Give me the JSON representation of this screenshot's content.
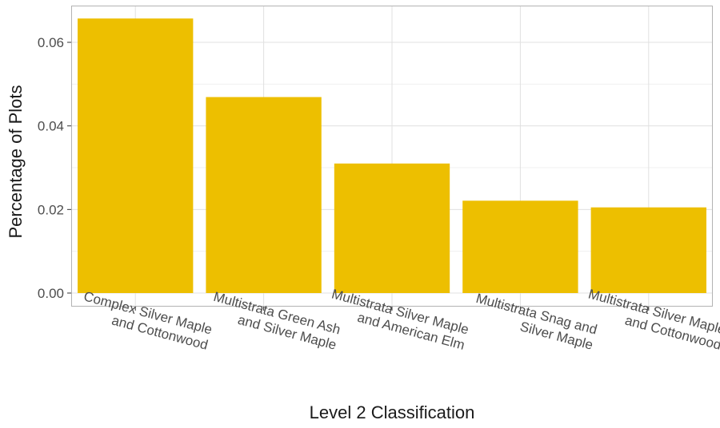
{
  "chart_data": {
    "type": "bar",
    "title": "",
    "xlabel": "Level 2 Classification",
    "ylabel": "Percentage of Plots",
    "categories": [
      [
        "Complex Silver Maple",
        "and Cottonwood"
      ],
      [
        "Multistrata Green Ash",
        "and Silver Maple"
      ],
      [
        "Multistrata Silver Maple",
        "and American Elm"
      ],
      [
        "Multistrata Snag and",
        "Silver Maple"
      ],
      [
        "Multistrata Silver Maple",
        "and Cottonwood"
      ]
    ],
    "values": [
      0.0657,
      0.0469,
      0.031,
      0.0221,
      0.0205
    ],
    "ylim": [
      0,
      0.069
    ],
    "yticks": [
      0,
      0.02,
      0.04,
      0.06
    ],
    "ytick_labels": [
      "0.00",
      "0.02",
      "0.04",
      "0.06"
    ],
    "bar_color": "#EDBF00",
    "grid": true,
    "legend": false
  }
}
